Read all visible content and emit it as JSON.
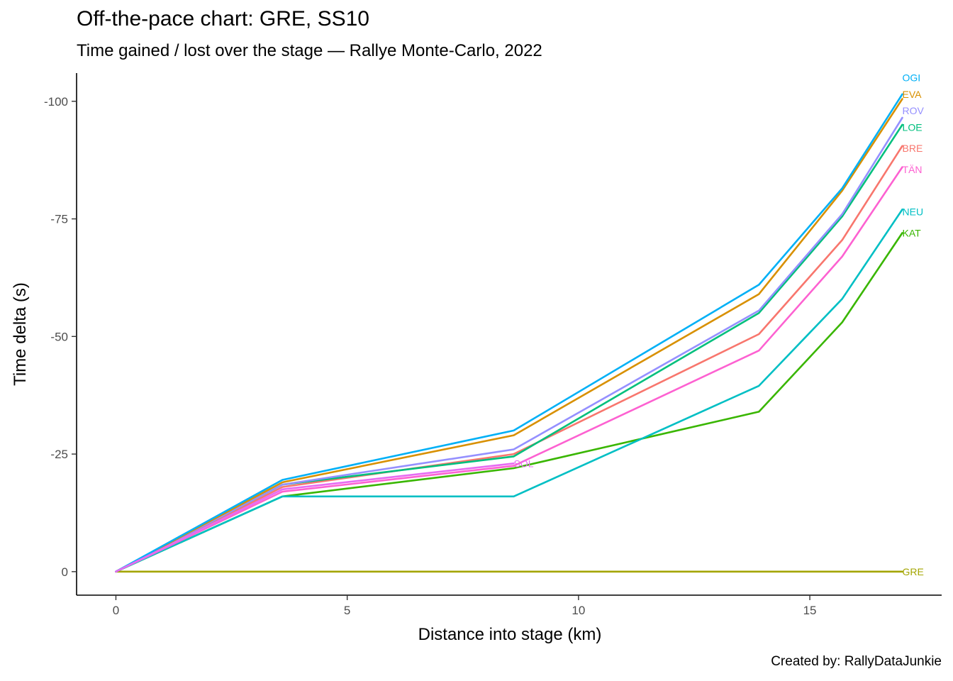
{
  "title": "Off-the-pace chart: GRE, SS10",
  "subtitle": "Time gained / lost over the stage — Rallye Monte-Carlo, 2022",
  "caption": "Created by: RallyDataJunkie",
  "chart_data": {
    "type": "line",
    "xlabel": "Distance into stage (km)",
    "ylabel": "Time delta (s)",
    "xlim": [
      -0.85,
      17.85
    ],
    "ylim": [
      5,
      -106
    ],
    "y_reversed": true,
    "x_ticks": [
      0,
      5,
      10,
      15
    ],
    "x_tick_labels": [
      "0",
      "5",
      "10",
      "15"
    ],
    "y_ticks": [
      0,
      -25,
      -50,
      -75,
      -100
    ],
    "y_tick_labels": [
      "0",
      "-25",
      "-50",
      "-75",
      "-100"
    ],
    "grid": false,
    "legend": "none (direct labels at line ends)",
    "x": [
      0,
      3.6,
      8.6,
      13.9,
      15.7,
      17.0
    ],
    "series": [
      {
        "name": "GRE",
        "color": "#a3a500",
        "values": [
          0,
          0,
          0,
          0,
          0,
          0
        ]
      },
      {
        "name": "KAT",
        "color": "#39b600",
        "values": [
          0,
          -16,
          -22,
          -34,
          -53,
          -72
        ]
      },
      {
        "name": "NEU",
        "color": "#00bfc4",
        "values": [
          0,
          -16,
          -16,
          -39.5,
          -58,
          -77
        ]
      },
      {
        "name": "TÄN",
        "color": "#fd61d1",
        "values": [
          0,
          -17,
          -22.5,
          -47,
          -67,
          -86
        ]
      },
      {
        "name": "BRE",
        "color": "#f8766d",
        "values": [
          0,
          -18,
          -25,
          -50.5,
          -70.5,
          -90.5
        ]
      },
      {
        "name": "LOE",
        "color": "#00bf7d",
        "values": [
          0,
          -18.5,
          -24.5,
          -55,
          -75.5,
          -95
        ]
      },
      {
        "name": "ROV",
        "color": "#9590ff",
        "values": [
          0,
          -18.5,
          -26,
          -55.5,
          -76,
          -96.5
        ]
      },
      {
        "name": "EVA",
        "color": "#d89000",
        "values": [
          0,
          -19,
          -29,
          -59,
          -81,
          -100.5
        ]
      },
      {
        "name": "OGI",
        "color": "#00b0f6",
        "values": [
          0,
          -19.5,
          -30,
          -61,
          -81.5,
          -101.5
        ]
      },
      {
        "name": "SOL",
        "color": "#e76bf3",
        "x": [
          0,
          3.6,
          8.6
        ],
        "values": [
          0,
          -17.5,
          -23
        ]
      }
    ],
    "end_labels": [
      {
        "name": "OGI",
        "color": "#00b0f6",
        "y": -105
      },
      {
        "name": "EVA",
        "color": "#d89000",
        "y": -101.5
      },
      {
        "name": "ROV",
        "color": "#9590ff",
        "y": -98
      },
      {
        "name": "LOE",
        "color": "#00bf7d",
        "y": -94.5
      },
      {
        "name": "BRE",
        "color": "#f8766d",
        "y": -90
      },
      {
        "name": "TÄN",
        "color": "#fd61d1",
        "y": -85.5
      },
      {
        "name": "NEU",
        "color": "#00bfc4",
        "y": -76.5
      },
      {
        "name": "KAT",
        "color": "#39b600",
        "y": -72
      },
      {
        "name": "GRE",
        "color": "#a3a500",
        "y": 0
      },
      {
        "name": "SOL",
        "color": "#e76bf3",
        "x": 8.6,
        "y": -23
      }
    ]
  }
}
